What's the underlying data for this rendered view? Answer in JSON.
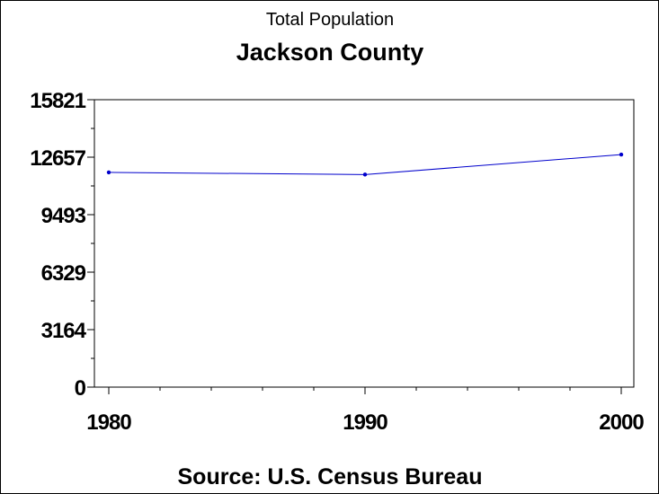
{
  "chart_data": {
    "type": "line",
    "subtitle": "Total Population",
    "title": "Jackson County",
    "source": "Source: U.S. Census Bureau",
    "x": [
      1980,
      1990,
      2000
    ],
    "x_tick_labels": [
      "1980",
      "1990",
      "2000"
    ],
    "xlim": [
      1980,
      2000
    ],
    "y_tick_values": [
      0,
      3164,
      6329,
      9493,
      12657,
      15821
    ],
    "y_tick_labels": [
      "0",
      "3164",
      "6329",
      "9493",
      "12657",
      "15821"
    ],
    "ylim": [
      0,
      15821
    ],
    "series": [
      {
        "values": [
          11820,
          11700,
          12800
        ]
      }
    ],
    "series_color": "#0000cc",
    "grid": false,
    "legend": "none"
  }
}
